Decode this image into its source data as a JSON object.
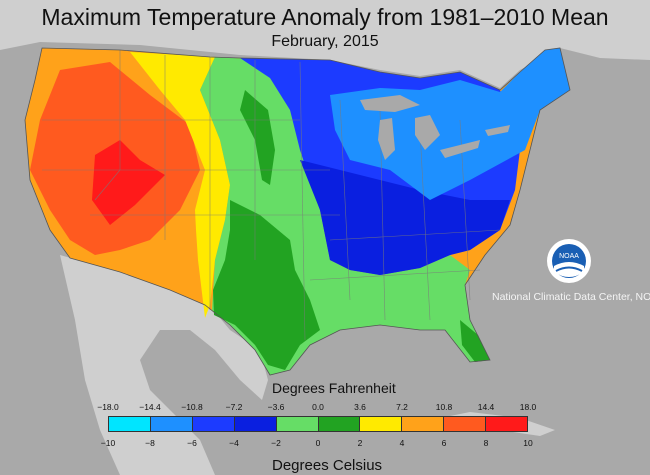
{
  "map": {
    "title": "Maximum Temperature Anomaly from 1981–2010 Mean",
    "subtitle": "February, 2015",
    "credit": "National Climatic Data Center, NOAA",
    "logo_text": "NOAA"
  },
  "legend": {
    "fahrenheit_title": "Degrees Fahrenheit",
    "celsius_title": "Degrees Celsius",
    "fahrenheit_ticks": [
      "−18.0",
      "−14.4",
      "−10.8",
      "−7.2",
      "−3.6",
      "0.0",
      "3.6",
      "7.2",
      "10.8",
      "14.4",
      "18.0"
    ],
    "celsius_ticks": [
      "−10",
      "−8",
      "−6",
      "−4",
      "−2",
      "0",
      "2",
      "4",
      "6",
      "8",
      "10"
    ],
    "colors": [
      "#00e5ff",
      "#1e90ff",
      "#1c3bff",
      "#0a1fe0",
      "#66dd66",
      "#22a322",
      "#ffea00",
      "#ffa21a",
      "#ff5a1f",
      "#ff1a1a",
      "#ff00ff"
    ]
  },
  "colors": {
    "background": "#a9a9a9",
    "land": "#cfcfcf",
    "water": "#a9a9a9",
    "anomaly_bins": {
      "m8_m6": "#1e90ff",
      "m6_m4": "#1c3bff",
      "m4_m2": "#0a1fe0",
      "m2_0": "#66dd66",
      "green_dark": "#22a322",
      "p0_p2": "#ffea00",
      "p2_p4": "#ffa21a",
      "p4_p6": "#ff5a1f",
      "p6_p8": "#ff1a1a"
    }
  }
}
